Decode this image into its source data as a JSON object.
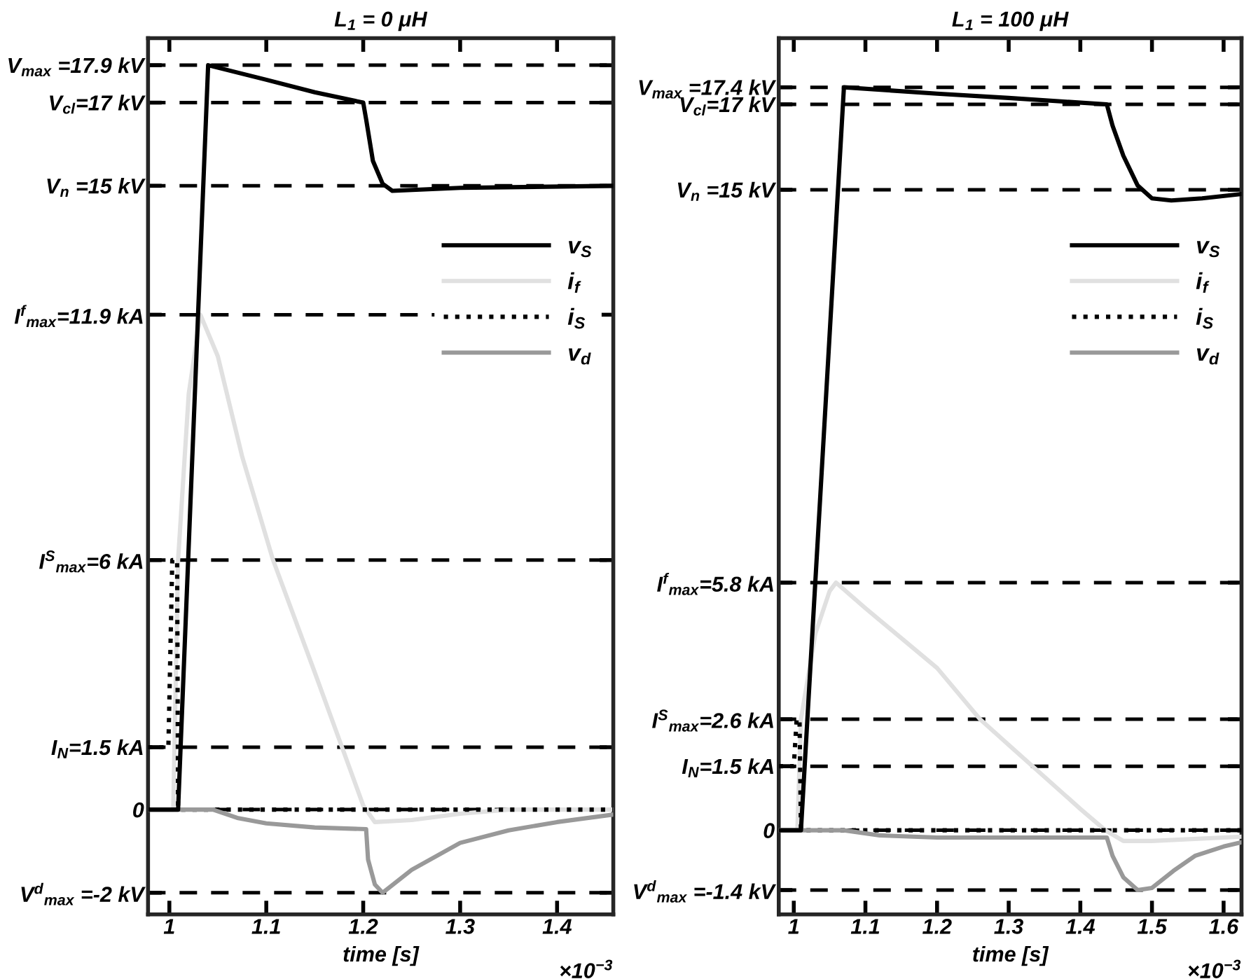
{
  "chart_data": [
    {
      "type": "line",
      "title": "L$_{1}$ = 0 μH",
      "xlabel": "time [s]",
      "annotations": [
        "×10$^{−3}$"
      ],
      "xlim": [
        0.978,
        1.458
      ],
      "xticks": [
        1,
        1.1,
        1.2,
        1.3,
        1.4
      ],
      "ylim": [
        -2.52,
        18.55
      ],
      "yticks": [
        {
          "value": -2,
          "label": "V$^{d}$$_{max}$ =-2 kV"
        },
        {
          "value": 0,
          "label": "0"
        },
        {
          "value": 1.5,
          "label": "I$_{N}$=1.5 kA"
        },
        {
          "value": 6,
          "label": "I$^{S}$$_{max}$=6 kA"
        },
        {
          "value": 11.9,
          "label": "I$^{f}$$_{max}$=11.9 kA"
        },
        {
          "value": 15,
          "label": "V$_{n}$ =15 kV"
        },
        {
          "value": 17,
          "label": "V$_{cl}$=17 kV"
        },
        {
          "value": 17.9,
          "label": "V$_{max}$ =17.9 kV"
        }
      ],
      "grid": "y",
      "legend": "right",
      "series": [
        {
          "name": "v$_{S}$",
          "color": "#000000",
          "line_style": "solid",
          "x": [
            0.978,
            1.009,
            1.04,
            1.1,
            1.15,
            1.2,
            1.203,
            1.21,
            1.22,
            1.23,
            1.3,
            1.458
          ],
          "values": [
            0,
            0,
            17.9,
            17.55,
            17.25,
            17.0,
            16.6,
            15.6,
            15.05,
            14.88,
            14.95,
            15.0
          ]
        },
        {
          "name": "i$_{f}$",
          "color": "#e0e0e0",
          "line_style": "solid",
          "x": [
            0.978,
            1.004,
            1.009,
            1.02,
            1.032,
            1.05,
            1.075,
            1.107,
            1.15,
            1.2,
            1.212,
            1.25,
            1.3,
            1.35,
            1.458
          ],
          "values": [
            0,
            0,
            6,
            10,
            11.9,
            10.9,
            8.5,
            6,
            3.3,
            0.1,
            -0.3,
            -0.25,
            -0.1,
            0,
            0
          ]
        },
        {
          "name": "i$_{S}$",
          "color": "#000000",
          "line_style": "dotted",
          "x": [
            0.978,
            0.999,
            1.003,
            1.008,
            1.009,
            1.458
          ],
          "values": [
            1.5,
            1.5,
            6,
            6,
            0,
            0
          ]
        },
        {
          "name": "v$_{d}$",
          "color": "#999999",
          "line_style": "solid",
          "x": [
            0.978,
            1.045,
            1.07,
            1.1,
            1.15,
            1.203,
            1.205,
            1.212,
            1.22,
            1.25,
            1.3,
            1.35,
            1.4,
            1.458
          ],
          "values": [
            0,
            0,
            -0.2,
            -0.33,
            -0.43,
            -0.47,
            -1.2,
            -1.8,
            -2.0,
            -1.45,
            -0.8,
            -0.5,
            -0.3,
            -0.12
          ]
        }
      ]
    },
    {
      "type": "line",
      "title": "L$_{1}$ = 100 μH",
      "xlabel": "time [s]",
      "annotations": [
        "×10$^{−3}$"
      ],
      "xlim": [
        0.979,
        1.625
      ],
      "xticks": [
        1,
        1.1,
        1.2,
        1.3,
        1.4,
        1.5,
        1.6
      ],
      "ylim": [
        -1.97,
        18.55
      ],
      "yticks": [
        {
          "value": -1.4,
          "label": "V$^{d}$$_{max}$ =-1.4 kV"
        },
        {
          "value": 0,
          "label": "0"
        },
        {
          "value": 1.5,
          "label": "I$_{N}$=1.5 kA"
        },
        {
          "value": 2.6,
          "label": "I$^{S}$$_{max}$=2.6 kA"
        },
        {
          "value": 5.8,
          "label": "I$^{f}$$_{max}$=5.8 kA"
        },
        {
          "value": 15,
          "label": "V$_{n}$ =15 kV"
        },
        {
          "value": 17,
          "label": "V$_{cl}$=17 kV"
        },
        {
          "value": 17.4,
          "label": "V$_{max}$ =17.4 kV"
        }
      ],
      "grid": "y",
      "legend": "right",
      "series": [
        {
          "name": "v$_{S}$",
          "color": "#000000",
          "line_style": "solid",
          "x": [
            0.979,
            1.01,
            1.07,
            1.2,
            1.3,
            1.437,
            1.445,
            1.46,
            1.48,
            1.5,
            1.527,
            1.57,
            1.625
          ],
          "values": [
            0,
            0,
            17.4,
            17.25,
            17.15,
            17.0,
            16.5,
            15.8,
            15.1,
            14.8,
            14.75,
            14.8,
            14.9
          ]
        },
        {
          "name": "i$_{f}$",
          "color": "#e0e0e0",
          "line_style": "solid",
          "x": [
            0.979,
            1.005,
            1.01,
            1.03,
            1.05,
            1.059,
            1.1,
            1.2,
            1.26,
            1.3,
            1.4,
            1.435,
            1.46,
            1.5,
            1.625
          ],
          "values": [
            0,
            0,
            2.6,
            4.6,
            5.6,
            5.8,
            5.2,
            3.8,
            2.6,
            2.0,
            0.5,
            0,
            -0.25,
            -0.25,
            -0.15
          ]
        },
        {
          "name": "i$_{S}$",
          "color": "#000000",
          "line_style": "dotted",
          "x": [
            0.979,
            1.0,
            1.004,
            1.008,
            1.01,
            1.625
          ],
          "values": [
            1.5,
            1.5,
            2.6,
            2.6,
            0,
            0
          ]
        },
        {
          "name": "v$_{d}$",
          "color": "#999999",
          "line_style": "solid",
          "x": [
            0.979,
            1.07,
            1.12,
            1.2,
            1.437,
            1.445,
            1.46,
            1.48,
            1.5,
            1.53,
            1.56,
            1.6,
            1.625
          ],
          "values": [
            0,
            0,
            -0.12,
            -0.17,
            -0.17,
            -0.6,
            -1.1,
            -1.4,
            -1.35,
            -0.95,
            -0.6,
            -0.38,
            -0.28
          ]
        }
      ]
    }
  ]
}
